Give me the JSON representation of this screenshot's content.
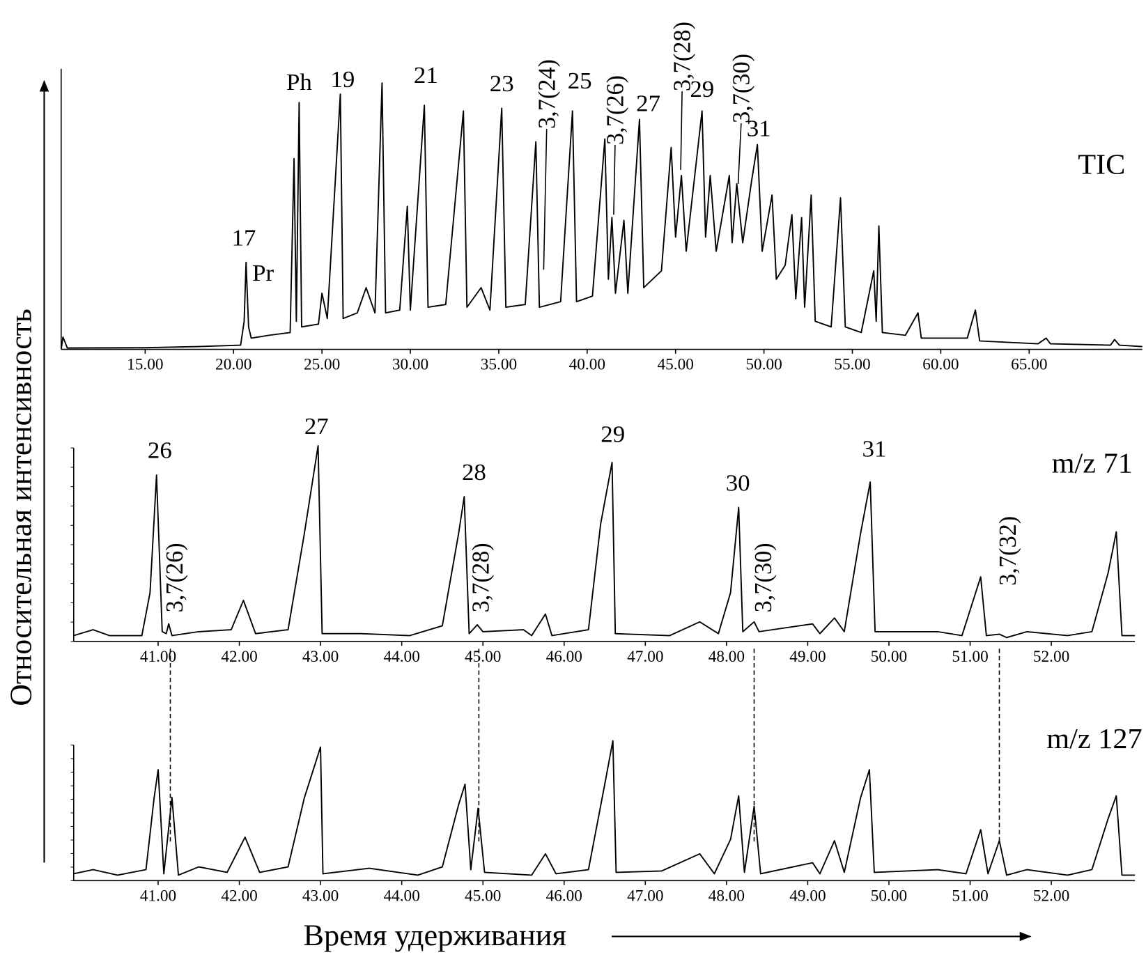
{
  "ylabel": "Относительная интенсивность",
  "xlabel": "Время удерживания",
  "chart_data": [
    {
      "type": "line",
      "title": "TIC",
      "color": "#000000",
      "xlim": [
        10.25,
        71.4
      ],
      "ylim": [
        0,
        100
      ],
      "xticks": [
        {
          "value": 15,
          "label": "15.00"
        },
        {
          "value": 20,
          "label": "20.00"
        },
        {
          "value": 25,
          "label": "25.00"
        },
        {
          "value": 30,
          "label": "30.00"
        },
        {
          "value": 35,
          "label": "35.00"
        },
        {
          "value": 40,
          "label": "40.00"
        },
        {
          "value": 45,
          "label": "45.00"
        },
        {
          "value": 50,
          "label": "50.00"
        },
        {
          "value": 55,
          "label": "55.00"
        },
        {
          "value": 60,
          "label": "60.00"
        },
        {
          "value": 65,
          "label": "65.00"
        }
      ],
      "x": [
        10.25,
        10.35,
        10.6,
        15,
        18,
        20.4,
        20.6,
        20.71,
        20.85,
        21,
        22,
        23.2,
        23.42,
        23.55,
        23.71,
        23.85,
        24.8,
        25,
        25.3,
        26.04,
        26.2,
        27,
        27.5,
        28,
        28.4,
        28.6,
        29.4,
        29.83,
        30,
        30.79,
        31,
        32,
        33,
        33.2,
        34,
        34.5,
        35.17,
        35.4,
        36.5,
        37.1,
        37.3,
        38.5,
        39.17,
        39.4,
        40.3,
        41,
        41.2,
        41.4,
        41.6,
        42.08,
        42.3,
        42.96,
        43.2,
        44.2,
        44.75,
        45,
        45.33,
        45.6,
        46.5,
        46.7,
        46.96,
        47.3,
        48.04,
        48.2,
        48.46,
        48.8,
        49.3,
        49.63,
        49.9,
        50.46,
        50.7,
        51.2,
        51.58,
        51.8,
        52.13,
        52.3,
        52.67,
        52.9,
        53.8,
        54.33,
        54.6,
        55.5,
        56.21,
        56.35,
        56.5,
        56.7,
        58,
        58.71,
        58.9,
        61.5,
        61.96,
        62.2,
        65.5,
        65.96,
        66.2,
        69.6,
        69.83,
        70.1,
        71.4
      ],
      "values": [
        0,
        4.4,
        0.5,
        0.6,
        1,
        1.5,
        10,
        31,
        8,
        4,
        5,
        6,
        68,
        10,
        88,
        8,
        9,
        20,
        11,
        91,
        11,
        13,
        22,
        13,
        95,
        13,
        14,
        51,
        14,
        87,
        15,
        16,
        85,
        15,
        22,
        14,
        86,
        15,
        16,
        74,
        15,
        17,
        85,
        17,
        19,
        75,
        25,
        47,
        20,
        46,
        20,
        82,
        22,
        28,
        72,
        40,
        62,
        35,
        85,
        40,
        62,
        35,
        62,
        38,
        59,
        38,
        60,
        73,
        35,
        55,
        25,
        30,
        48,
        18,
        47,
        15,
        55,
        10,
        8,
        54,
        8,
        6,
        28,
        10,
        44,
        6,
        5,
        13,
        4,
        4,
        14,
        3,
        2,
        4,
        2,
        1.5,
        3.5,
        1.5,
        1
      ],
      "annotations": [
        {
          "text": "17",
          "x": 20.58,
          "y": 37
        },
        {
          "text": "Pr",
          "x": 21.67,
          "y": 24.5
        },
        {
          "text": "Ph",
          "x": 23.71,
          "y": 92.5
        },
        {
          "text": "19",
          "x": 26.17,
          "y": 93.5
        },
        {
          "text": "21",
          "x": 30.88,
          "y": 95
        },
        {
          "text": "23",
          "x": 35.17,
          "y": 92
        },
        {
          "text": "25",
          "x": 39.58,
          "y": 93
        },
        {
          "text": "27",
          "x": 43.46,
          "y": 85
        },
        {
          "text": "29",
          "x": 46.5,
          "y": 90
        },
        {
          "text": "31",
          "x": 49.71,
          "y": 76
        },
        {
          "text": "3,7(24)",
          "x": 37.71,
          "y": 78.6,
          "rotate": true,
          "line_to": [
            37.54,
            28.4
          ]
        },
        {
          "text": "3,7(26)",
          "x": 41.58,
          "y": 72.9,
          "rotate": true,
          "line_to": [
            41.5,
            48
          ]
        },
        {
          "text": "3,7(28)",
          "x": 45.37,
          "y": 92,
          "rotate": true,
          "line_to": [
            45.29,
            64
          ]
        },
        {
          "text": "3,7(30)",
          "x": 48.71,
          "y": 80.6,
          "rotate": true,
          "line_to": [
            48.54,
            59
          ]
        }
      ]
    },
    {
      "type": "line",
      "title": "m/z 71",
      "color": "#000000",
      "xlim": [
        39.96,
        53.03
      ],
      "ylim": [
        0,
        100
      ],
      "xticks": [
        {
          "value": 41,
          "label": "41.00"
        },
        {
          "value": 42,
          "label": "42.00"
        },
        {
          "value": 43,
          "label": "43.00"
        },
        {
          "value": 44,
          "label": "44.00"
        },
        {
          "value": 45,
          "label": "45.00"
        },
        {
          "value": 46,
          "label": "46.00"
        },
        {
          "value": 47,
          "label": "47.00"
        },
        {
          "value": 48,
          "label": "48.00"
        },
        {
          "value": 49,
          "label": "49.00"
        },
        {
          "value": 50,
          "label": "50.00"
        },
        {
          "value": 51,
          "label": "51.00"
        },
        {
          "value": 52,
          "label": "52.00"
        }
      ],
      "x": [
        39.96,
        40.2,
        40.4,
        40.8,
        40.9,
        40.98,
        41.05,
        41.1,
        41.13,
        41.17,
        41.5,
        41.9,
        42.05,
        42.2,
        42.6,
        42.8,
        42.97,
        43.02,
        43.5,
        44.1,
        44.5,
        44.7,
        44.77,
        44.83,
        44.93,
        45,
        45.5,
        45.6,
        45.77,
        45.85,
        46.3,
        46.45,
        46.59,
        46.63,
        47.3,
        47.67,
        47.9,
        48.05,
        48.15,
        48.2,
        48.34,
        48.4,
        49.06,
        49.15,
        49.33,
        49.45,
        49.65,
        49.77,
        49.83,
        50.6,
        50.9,
        51.13,
        51.2,
        51.36,
        51.45,
        51.7,
        52.2,
        52.5,
        52.7,
        52.8,
        52.87,
        53.03
      ],
      "values": [
        3,
        6,
        3,
        3,
        25,
        85,
        5,
        4,
        9,
        3,
        5,
        6,
        21,
        4,
        6,
        55,
        100,
        4,
        4,
        3,
        8,
        55,
        74,
        4,
        8.5,
        5,
        6,
        3,
        14,
        3,
        6,
        60,
        91.5,
        4,
        3,
        10,
        4,
        25,
        68.5,
        5,
        10,
        5,
        9,
        4,
        12,
        5,
        55,
        81.5,
        5,
        5,
        3,
        33,
        3,
        3.7,
        2,
        5,
        3,
        5,
        35,
        56,
        3,
        3
      ],
      "annotations": [
        {
          "text": "26",
          "x": 41.02,
          "y": 93.7
        },
        {
          "text": "27",
          "x": 42.95,
          "y": 106
        },
        {
          "text": "28",
          "x": 44.89,
          "y": 82.6
        },
        {
          "text": "29",
          "x": 46.6,
          "y": 102
        },
        {
          "text": "30",
          "x": 48.14,
          "y": 77
        },
        {
          "text": "31",
          "x": 49.82,
          "y": 94.4
        },
        {
          "text": "3,7(26)",
          "x": 41.2,
          "y": 14.8,
          "rotate": true
        },
        {
          "text": "3,7(28)",
          "x": 44.97,
          "y": 14.8,
          "rotate": true
        },
        {
          "text": "3,7(30)",
          "x": 48.45,
          "y": 14.8,
          "rotate": true
        },
        {
          "text": "3,7(32)",
          "x": 51.46,
          "y": 28.5,
          "rotate": true
        }
      ]
    },
    {
      "type": "line",
      "title": "m/z 127",
      "color": "#000000",
      "xlim": [
        39.96,
        53.03
      ],
      "ylim": [
        0,
        100
      ],
      "xticks": [
        {
          "value": 41,
          "label": "41.00"
        },
        {
          "value": 42,
          "label": "42.00"
        },
        {
          "value": 43,
          "label": "43.00"
        },
        {
          "value": 44,
          "label": "44.00"
        },
        {
          "value": 45,
          "label": "45.00"
        },
        {
          "value": 46,
          "label": "46.00"
        },
        {
          "value": 47,
          "label": "47.00"
        },
        {
          "value": 48,
          "label": "48.00"
        },
        {
          "value": 49,
          "label": "49.00"
        },
        {
          "value": 50,
          "label": "50.00"
        },
        {
          "value": 51,
          "label": "51.00"
        },
        {
          "value": 52,
          "label": "52.00"
        }
      ],
      "x": [
        39.96,
        40.2,
        40.5,
        40.85,
        40.95,
        41,
        41.07,
        41.17,
        41.25,
        41.5,
        41.85,
        42.07,
        42.25,
        42.6,
        42.8,
        43,
        43.03,
        43.6,
        44.2,
        44.5,
        44.7,
        44.78,
        44.85,
        44.94,
        45.02,
        45.6,
        45.77,
        45.9,
        46.3,
        46.5,
        46.6,
        46.64,
        47.2,
        47.67,
        47.85,
        48.05,
        48.15,
        48.22,
        48.34,
        48.42,
        49.06,
        49.15,
        49.33,
        49.45,
        49.65,
        49.76,
        49.82,
        50.6,
        50.95,
        51.13,
        51.22,
        51.36,
        51.45,
        51.7,
        52.2,
        52.5,
        52.7,
        52.8,
        52.87,
        53.03
      ],
      "values": [
        5,
        8,
        4,
        8,
        60,
        80.5,
        5,
        60.5,
        4,
        10,
        6,
        31.6,
        6,
        10,
        60,
        97,
        5,
        9,
        4,
        10,
        55,
        70,
        8,
        52.6,
        6,
        4,
        19.5,
        5,
        8,
        70,
        101.6,
        6,
        7,
        19.5,
        5,
        30,
        61.6,
        6,
        54,
        5,
        13,
        5,
        29,
        6,
        60,
        80.5,
        6,
        8,
        5,
        37,
        5,
        29,
        4,
        8,
        4,
        8,
        45,
        61.6,
        4,
        4
      ],
      "guides": [
        41.15,
        44.95,
        48.34,
        51.36
      ]
    }
  ]
}
